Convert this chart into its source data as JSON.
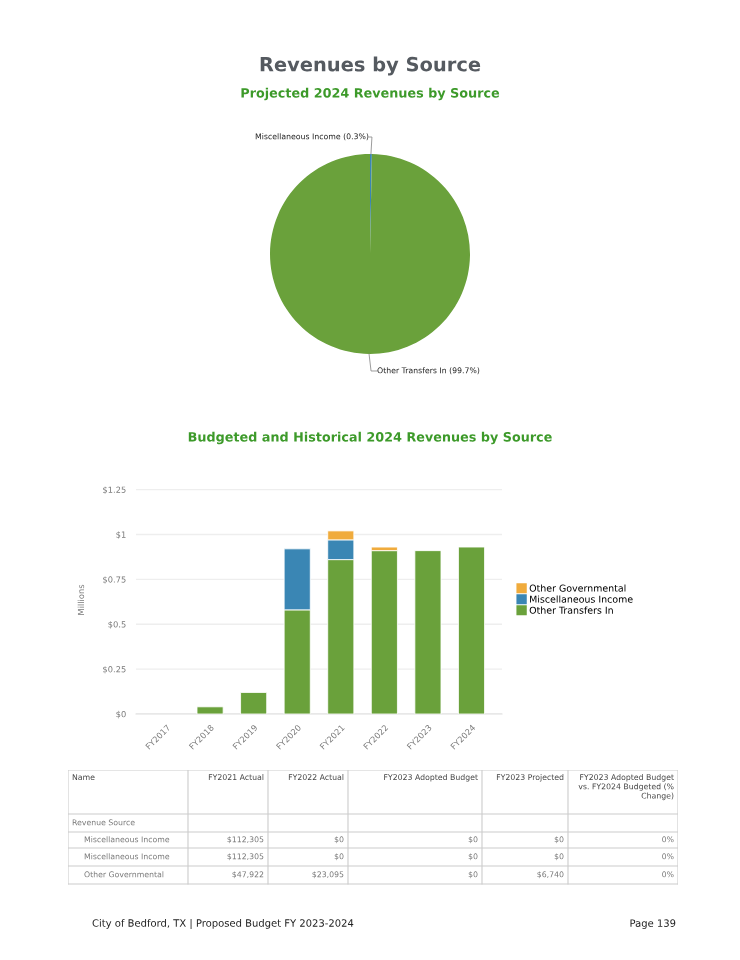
{
  "chart_data": [
    {
      "type": "pie",
      "title": "Revenues by Source",
      "subtitle": "Projected 2024 Revenues by Source",
      "categories": [
        "Miscellaneous Income (0.3%)",
        "Other Transfers In (99.7%)"
      ],
      "values": [
        0.3,
        99.7
      ],
      "colors": [
        "#3a86b4",
        "#6aa13b"
      ]
    },
    {
      "type": "bar",
      "title": "Budgeted and Historical 2024 Revenues by Source",
      "ylabel": "Millions",
      "stacked": true,
      "categories": [
        "FY2017",
        "FY2018",
        "FY2019",
        "FY2020",
        "FY2021",
        "FY2022",
        "FY2023",
        "FY2024"
      ],
      "series": [
        {
          "name": "Other Transfers In",
          "color": "#6aa13b",
          "values": [
            null,
            0.04,
            0.12,
            0.58,
            0.86,
            0.91,
            0.91,
            0.93
          ]
        },
        {
          "name": "Miscellaneous Income",
          "color": "#3a86b4",
          "values": [
            null,
            null,
            null,
            0.34,
            0.11,
            null,
            null,
            null
          ]
        },
        {
          "name": "Other Governmental",
          "color": "#f0ab3c",
          "values": [
            null,
            null,
            null,
            null,
            0.05,
            0.02,
            null,
            null
          ]
        }
      ],
      "ylim": [
        0,
        1.27
      ],
      "yticks": [
        {
          "value": 0,
          "label": "$0"
        },
        {
          "value": 0.25,
          "label": "$0.25"
        },
        {
          "value": 0.5,
          "label": "$0.5"
        },
        {
          "value": 0.75,
          "label": "$0.75"
        },
        {
          "value": 1,
          "label": "$1"
        },
        {
          "value": 1.25,
          "label": "$1.25"
        }
      ],
      "grid": "y",
      "legend": "right"
    },
    {
      "type": "other",
      "categories": [
        "Name",
        "FY2021 Actual",
        "FY2022 Actual",
        "FY2023 Adopted Budget",
        "FY2023 Projected",
        "FY2023 Adopted Budget vs. FY2024 Budgeted (% Change)"
      ],
      "y_categories": [
        "Revenue Source",
        "Miscellaneous Income",
        "Miscellaneous Income",
        "Other Governmental"
      ],
      "cell_labels": [
        [
          null,
          null,
          null,
          null,
          null
        ],
        [
          "$112,305",
          "$0",
          "$0",
          "$0",
          "0%"
        ],
        [
          "$112,305",
          "$0",
          "$0",
          "$0",
          "0%"
        ],
        [
          "$47,922",
          "$23,095",
          "$0",
          "$6,740",
          "0%"
        ]
      ],
      "annotations": [
        "City of Bedford, TX | Proposed Budget FY 2023-2024",
        "Page 139"
      ]
    }
  ]
}
